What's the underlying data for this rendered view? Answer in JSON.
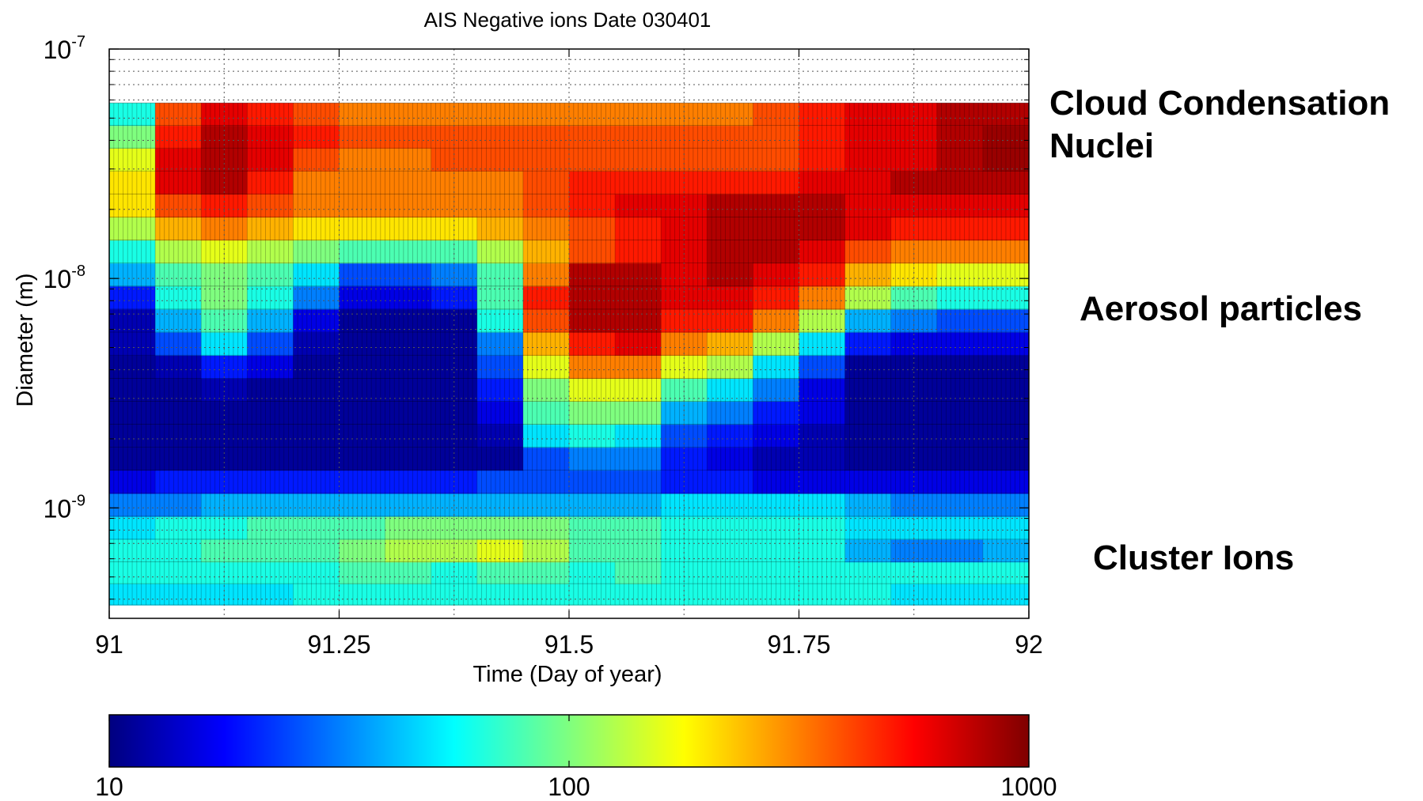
{
  "chart_data": {
    "type": "heatmap",
    "title": "AIS Negative ions Date 030401",
    "xlabel": "Time (Day of year)",
    "ylabel": "Diameter (m)",
    "xlim": [
      91,
      92
    ],
    "ylim": [
      3.3e-10,
      1e-07
    ],
    "y_scale": "log",
    "grid": true,
    "x_ticks": [
      "91",
      "91.25",
      "91.5",
      "91.75",
      "92"
    ],
    "x_tick_values": [
      91,
      91.25,
      91.5,
      91.75,
      92
    ],
    "y_ticks": [
      {
        "base": "10",
        "exp": "-7",
        "value": 1e-07
      },
      {
        "base": "10",
        "exp": "-8",
        "value": 1e-08
      },
      {
        "base": "10",
        "exp": "-9",
        "value": 1e-09
      }
    ],
    "time_bins": [
      91.0,
      91.05,
      91.1,
      91.15,
      91.2,
      91.25,
      91.3,
      91.35,
      91.4,
      91.45,
      91.5,
      91.55,
      91.6,
      91.65,
      91.7,
      91.75,
      91.8,
      91.85,
      91.9,
      91.95
    ],
    "diameter_bins_m": [
      4.2e-10,
      5.2e-10,
      6.5e-10,
      8.2e-10,
      1.03e-09,
      1.3e-09,
      1.64e-09,
      2.06e-09,
      2.6e-09,
      3.27e-09,
      4.12e-09,
      5.2e-09,
      6.55e-09,
      8.25e-09,
      1.04e-08,
      1.31e-08,
      1.65e-08,
      2.08e-08,
      2.62e-08,
      3.3e-08,
      4.15e-08,
      5.2e-08
    ],
    "values_log10_concentration": [
      [
        1.7,
        1.7,
        1.7,
        1.7,
        1.8,
        1.8,
        1.8,
        1.8,
        1.8,
        1.8,
        1.8,
        1.8,
        1.8,
        1.8,
        1.8,
        1.8,
        1.8,
        1.7,
        1.7,
        1.7
      ],
      [
        1.8,
        1.8,
        1.8,
        1.8,
        1.8,
        1.9,
        1.9,
        1.8,
        1.9,
        1.9,
        1.8,
        1.9,
        1.8,
        1.8,
        1.8,
        1.8,
        1.8,
        1.8,
        1.8,
        1.8
      ],
      [
        1.8,
        1.8,
        1.9,
        1.9,
        1.9,
        2.0,
        2.1,
        2.1,
        2.2,
        2.1,
        1.9,
        1.9,
        1.8,
        1.8,
        1.8,
        1.8,
        1.6,
        1.5,
        1.5,
        1.6
      ],
      [
        1.7,
        1.8,
        1.8,
        1.9,
        1.9,
        1.9,
        2.0,
        2.0,
        2.0,
        2.0,
        1.9,
        1.9,
        1.8,
        1.8,
        1.8,
        1.8,
        1.7,
        1.7,
        1.7,
        1.7
      ],
      [
        1.5,
        1.5,
        1.6,
        1.6,
        1.6,
        1.6,
        1.6,
        1.6,
        1.6,
        1.6,
        1.6,
        1.6,
        1.7,
        1.7,
        1.7,
        1.7,
        1.6,
        1.5,
        1.5,
        1.5
      ],
      [
        1.2,
        1.3,
        1.3,
        1.3,
        1.3,
        1.3,
        1.3,
        1.3,
        1.4,
        1.4,
        1.4,
        1.4,
        1.3,
        1.3,
        1.2,
        1.2,
        1.2,
        1.2,
        1.2,
        1.2
      ],
      [
        1.05,
        1.05,
        1.05,
        1.05,
        1.05,
        1.05,
        1.05,
        1.05,
        1.05,
        1.4,
        1.5,
        1.5,
        1.3,
        1.2,
        1.1,
        1.1,
        1.05,
        1.05,
        1.05,
        1.05
      ],
      [
        1.05,
        1.05,
        1.05,
        1.05,
        1.05,
        1.05,
        1.05,
        1.05,
        1.1,
        1.7,
        1.8,
        1.7,
        1.4,
        1.3,
        1.2,
        1.1,
        1.05,
        1.05,
        1.05,
        1.05
      ],
      [
        1.05,
        1.05,
        1.05,
        1.05,
        1.05,
        1.05,
        1.05,
        1.05,
        1.2,
        1.9,
        2.0,
        2.0,
        1.6,
        1.5,
        1.3,
        1.2,
        1.05,
        1.05,
        1.05,
        1.05
      ],
      [
        1.05,
        1.05,
        1.1,
        1.05,
        1.05,
        1.05,
        1.05,
        1.05,
        1.3,
        2.0,
        2.2,
        2.2,
        1.9,
        1.7,
        1.5,
        1.2,
        1.05,
        1.05,
        1.05,
        1.05
      ],
      [
        1.05,
        1.1,
        1.3,
        1.2,
        1.05,
        1.05,
        1.05,
        1.05,
        1.4,
        2.2,
        2.5,
        2.5,
        2.2,
        2.1,
        1.7,
        1.4,
        1.05,
        1.05,
        1.05,
        1.05
      ],
      [
        1.1,
        1.4,
        1.7,
        1.4,
        1.1,
        1.05,
        1.05,
        1.05,
        1.5,
        2.4,
        2.7,
        2.8,
        2.5,
        2.4,
        2.1,
        1.7,
        1.3,
        1.2,
        1.2,
        1.2
      ],
      [
        1.1,
        1.6,
        1.9,
        1.6,
        1.2,
        1.05,
        1.05,
        1.05,
        1.8,
        2.6,
        2.9,
        2.9,
        2.7,
        2.7,
        2.5,
        2.1,
        1.6,
        1.5,
        1.4,
        1.4
      ],
      [
        1.3,
        1.8,
        2.0,
        1.8,
        1.5,
        1.2,
        1.2,
        1.3,
        1.9,
        2.7,
        2.9,
        2.9,
        2.8,
        2.8,
        2.7,
        2.5,
        2.1,
        1.9,
        1.8,
        1.8
      ],
      [
        1.6,
        1.9,
        2.0,
        1.9,
        1.7,
        1.4,
        1.4,
        1.5,
        1.9,
        2.5,
        2.9,
        2.9,
        2.8,
        2.9,
        2.8,
        2.7,
        2.4,
        2.3,
        2.2,
        2.2
      ],
      [
        1.8,
        2.1,
        2.2,
        2.1,
        2.0,
        1.9,
        1.9,
        1.9,
        2.1,
        2.4,
        2.6,
        2.7,
        2.8,
        2.9,
        2.9,
        2.8,
        2.6,
        2.5,
        2.5,
        2.5
      ],
      [
        2.1,
        2.4,
        2.5,
        2.4,
        2.3,
        2.3,
        2.3,
        2.3,
        2.4,
        2.5,
        2.6,
        2.7,
        2.8,
        2.9,
        2.9,
        2.9,
        2.8,
        2.7,
        2.7,
        2.7
      ],
      [
        2.3,
        2.6,
        2.7,
        2.6,
        2.5,
        2.5,
        2.5,
        2.5,
        2.5,
        2.6,
        2.7,
        2.8,
        2.8,
        2.9,
        2.9,
        2.9,
        2.8,
        2.8,
        2.8,
        2.8
      ],
      [
        2.3,
        2.8,
        2.9,
        2.7,
        2.5,
        2.5,
        2.5,
        2.5,
        2.5,
        2.6,
        2.7,
        2.7,
        2.7,
        2.7,
        2.7,
        2.8,
        2.8,
        2.9,
        2.9,
        2.9
      ],
      [
        2.2,
        2.8,
        2.9,
        2.8,
        2.6,
        2.5,
        2.5,
        2.6,
        2.6,
        2.6,
        2.6,
        2.6,
        2.6,
        2.6,
        2.6,
        2.7,
        2.8,
        2.8,
        2.9,
        2.95
      ],
      [
        2.0,
        2.7,
        2.9,
        2.8,
        2.7,
        2.6,
        2.6,
        2.6,
        2.6,
        2.6,
        2.6,
        2.6,
        2.6,
        2.6,
        2.6,
        2.7,
        2.8,
        2.8,
        2.9,
        2.95
      ],
      [
        1.8,
        2.6,
        2.8,
        2.7,
        2.6,
        2.5,
        2.5,
        2.5,
        2.5,
        2.5,
        2.5,
        2.5,
        2.5,
        2.5,
        2.6,
        2.7,
        2.8,
        2.8,
        2.9,
        2.9
      ]
    ],
    "colorbar": {
      "scale": "log",
      "range": [
        10,
        1000
      ],
      "tick_labels": [
        "10",
        "100",
        "1000"
      ],
      "tick_values": [
        10,
        100,
        1000
      ],
      "colormap": "jet",
      "colormap_stops": [
        "#00007f",
        "#0000ff",
        "#007fff",
        "#00ffff",
        "#7fff7f",
        "#ffff00",
        "#ff7f00",
        "#ff0000",
        "#7f0000"
      ]
    },
    "annotations": [
      {
        "lines": [
          "Cloud Condensation",
          "Nuclei"
        ]
      },
      {
        "lines": [
          "Aerosol particles"
        ]
      },
      {
        "lines": [
          "Cluster Ions"
        ]
      }
    ]
  }
}
